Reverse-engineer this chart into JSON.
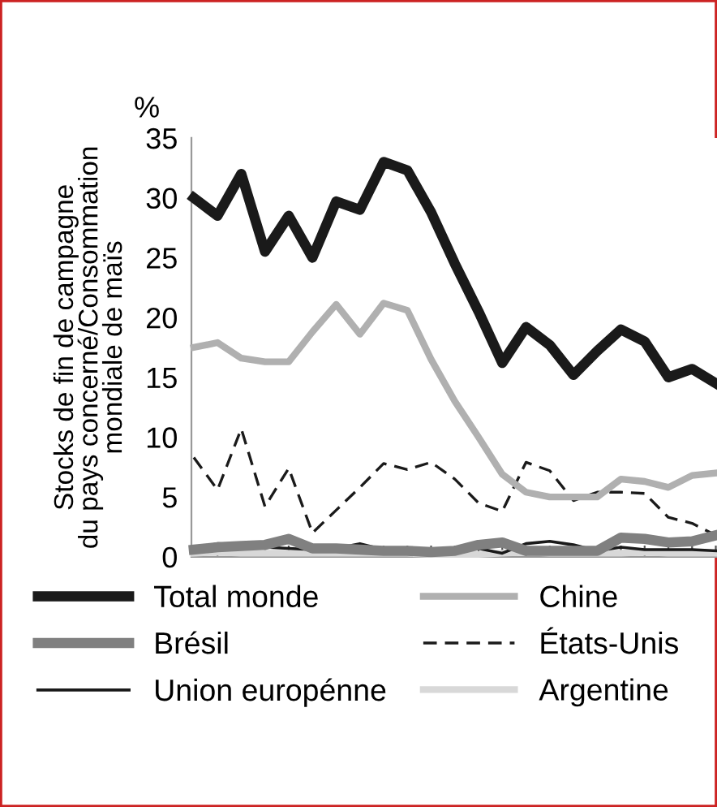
{
  "chart_data": {
    "type": "line",
    "ylabel": "Stocks de fin de campagne\ndu pays concerné/Consommation\nmondiale de maïs",
    "annotations": [
      "%"
    ],
    "categories": [
      null,
      null,
      null,
      null,
      null,
      null,
      null,
      null,
      null,
      null,
      null,
      null,
      null,
      null,
      null,
      null,
      null,
      null,
      null,
      null,
      null,
      null,
      null
    ],
    "ylim": [
      0,
      35
    ],
    "yticks": [
      0,
      5,
      10,
      15,
      20,
      25,
      30,
      35
    ],
    "grid": false,
    "legend": "bottom",
    "marker": "none",
    "series": [
      {
        "name": "Total monde",
        "color": "#1a1a1a",
        "line_style": "solid",
        "values": [
          30,
          28.5,
          32,
          25.5,
          28.5,
          25,
          29.7,
          29,
          33,
          32.3,
          28.8,
          24.5,
          20.5,
          16.2,
          19.2,
          17.7,
          15.2,
          17.2,
          19,
          18,
          15,
          15.7,
          14.5
        ]
      },
      {
        "name": "Chine",
        "color": "#b0b0b0",
        "line_style": "solid",
        "values": [
          17.5,
          17.9,
          16.6,
          16.3,
          16.3,
          18.8,
          21.1,
          18.6,
          21.2,
          20.6,
          16.5,
          13,
          10,
          6.9,
          5.4,
          5,
          5,
          5,
          6.5,
          6.3,
          5.8,
          6.8,
          7
        ]
      },
      {
        "name": "Brésil",
        "color": "#808080",
        "line_style": "solid",
        "values": [
          0.6,
          0.8,
          0.9,
          1.0,
          1.5,
          0.7,
          0.7,
          0.6,
          0.5,
          0.5,
          0.4,
          0.5,
          1.0,
          1.2,
          0.5,
          0.5,
          0.5,
          0.5,
          1.6,
          1.5,
          1.2,
          1.3,
          1.8
        ]
      },
      {
        "name": "États-Unis",
        "color": "#1a1a1a",
        "line_style": "dashed",
        "values": [
          8.3,
          5.6,
          10.7,
          4.2,
          7.4,
          2.0,
          3.9,
          5.8,
          7.8,
          7.3,
          7.9,
          6.5,
          4.5,
          3.8,
          7.9,
          7.2,
          4.7,
          5.4,
          5.4,
          5.3,
          3.3,
          2.8,
          1.8
        ]
      },
      {
        "name": "Union europénne",
        "color": "#1a1a1a",
        "line_style": "solid",
        "values": [
          0.7,
          1.1,
          1.0,
          0.8,
          0.7,
          0.6,
          0.7,
          1.1,
          0.6,
          0.7,
          0.5,
          0.4,
          0.7,
          0.3,
          1.1,
          1.3,
          1.0,
          0.5,
          0.8,
          0.6,
          0.6,
          0.6,
          0.5
        ]
      },
      {
        "name": "Argentine",
        "color": "#d8d8d8",
        "line_style": "solid",
        "values": [
          0.3,
          0.4,
          0.3,
          0.3,
          0.3,
          0.3,
          0.3,
          0.3,
          0.3,
          0.3,
          0.2,
          0.2,
          0.2,
          0.3,
          0.4,
          0.3,
          0.3,
          0.3,
          0.3,
          0.4,
          0.3,
          0.3,
          0.3
        ]
      }
    ]
  }
}
